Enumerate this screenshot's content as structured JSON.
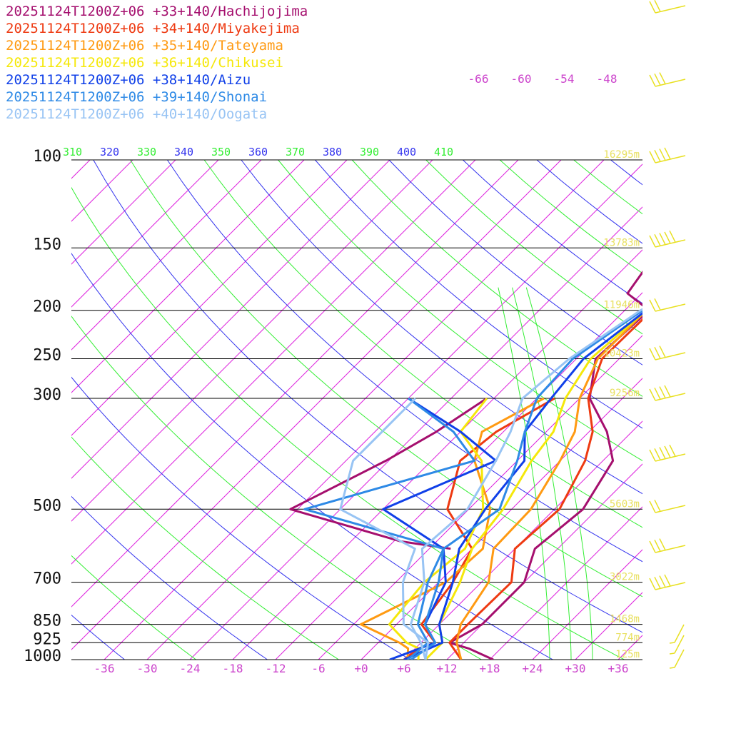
{
  "chart_data": {
    "type": "line",
    "title": "",
    "xlabel": "",
    "ylabel": "",
    "pressure_levels": [
      {
        "p": 100,
        "label": "100",
        "height": "16295m"
      },
      {
        "p": 150,
        "label": "150",
        "height": "13783m"
      },
      {
        "p": 200,
        "label": "200",
        "height": "11946m"
      },
      {
        "p": 250,
        "label": "250",
        "height": "10423m"
      },
      {
        "p": 300,
        "label": "300",
        "height": "9256m"
      },
      {
        "p": 500,
        "label": "500",
        "height": "5603m"
      },
      {
        "p": 700,
        "label": "700",
        "height": "3022m"
      },
      {
        "p": 850,
        "label": "850",
        "height": "1468m"
      },
      {
        "p": 925,
        "label": "925",
        "height": "774m"
      },
      {
        "p": 1000,
        "label": "1000",
        "height": "125m"
      }
    ],
    "x_ticks": [
      "-36",
      "-30",
      "-24",
      "-18",
      "-12",
      "-6",
      "+0",
      "+6",
      "+12",
      "+18",
      "+24",
      "+30",
      "+36"
    ],
    "x_tick_values": [
      -36,
      -30,
      -24,
      -18,
      -12,
      -6,
      0,
      6,
      12,
      18,
      24,
      30,
      36
    ],
    "upper_isotherm_labels": [
      "-66",
      "-60",
      "-54",
      "-48"
    ],
    "theta_labels": [
      "310",
      "320",
      "330",
      "340",
      "350",
      "360",
      "370",
      "380",
      "390",
      "400",
      "410"
    ],
    "xlim": [
      -40,
      40
    ],
    "ylim": [
      1000,
      100
    ],
    "series": [
      {
        "name": "20251124T1200Z+06 +33+140/Hachijojima",
        "color": "#a50f6e",
        "profile": [
          [
            1000,
            18.5
          ],
          [
            950,
            13.5
          ],
          [
            925,
            10
          ],
          [
            850,
            12
          ],
          [
            700,
            12
          ],
          [
            600,
            8.8
          ],
          [
            500,
            10
          ],
          [
            400,
            7.4
          ],
          [
            350,
            2.5
          ],
          [
            300,
            -4.6
          ],
          [
            250,
            -9.3
          ],
          [
            200,
            -8.6
          ],
          [
            185,
            -14
          ],
          [
            165,
            -15
          ],
          [
            150,
            -15
          ],
          [
            100,
            -5
          ],
          [
            80,
            12
          ],
          [
            70,
            17
          ],
          [
            62,
            26
          ],
          [
            52,
            40
          ],
          [
            45,
            52
          ]
        ],
        "dewpoint": [
          [
            600,
            -3
          ],
          [
            580,
            -11
          ],
          [
            500,
            -31
          ],
          [
            400,
            -24.4
          ],
          [
            350,
            -21.4
          ],
          [
            300,
            -19
          ]
        ]
      },
      {
        "name": "20251124T1200Z+06 +34+140/Miyakejima",
        "color": "#ee3a12",
        "profile": [
          [
            1000,
            14
          ],
          [
            925,
            10
          ],
          [
            850,
            10
          ],
          [
            700,
            10.2
          ],
          [
            600,
            6
          ],
          [
            500,
            6.7
          ],
          [
            400,
            3.5
          ],
          [
            350,
            0.5
          ],
          [
            300,
            -4.8
          ],
          [
            250,
            -8.4
          ],
          [
            200,
            -8.2
          ],
          [
            175,
            -11
          ],
          [
            150,
            -12
          ],
          [
            100,
            -2
          ],
          [
            70,
            14
          ],
          [
            55,
            34
          ],
          [
            46,
            52
          ]
        ],
        "dewpoint": [
          [
            1000,
            6
          ],
          [
            950,
            6.5
          ],
          [
            925,
            8
          ],
          [
            850,
            3.5
          ],
          [
            700,
            2
          ],
          [
            600,
            0
          ],
          [
            500,
            -9
          ],
          [
            400,
            -14
          ],
          [
            350,
            -13
          ],
          [
            300,
            -9.5
          ]
        ]
      },
      {
        "name": "20251124T1200Z+06 +35+140/Tateyama",
        "color": "#ff9a12",
        "profile": [
          [
            1000,
            14
          ],
          [
            925,
            11
          ],
          [
            850,
            9
          ],
          [
            700,
            7
          ],
          [
            600,
            3
          ],
          [
            500,
            2.7
          ],
          [
            400,
            0
          ],
          [
            350,
            -2
          ],
          [
            300,
            -6
          ],
          [
            250,
            -9
          ],
          [
            200,
            -9
          ],
          [
            175,
            -11
          ],
          [
            150,
            -10
          ],
          [
            100,
            2
          ],
          [
            70,
            8
          ],
          [
            55,
            33
          ],
          [
            46,
            50
          ]
        ],
        "dewpoint": [
          [
            1000,
            6.5
          ],
          [
            950,
            5
          ],
          [
            925,
            3
          ],
          [
            850,
            -5
          ],
          [
            700,
            1
          ],
          [
            600,
            1.5
          ],
          [
            500,
            -3
          ],
          [
            400,
            -12
          ],
          [
            350,
            -15
          ],
          [
            300,
            -11
          ]
        ]
      },
      {
        "name": "20251124T1200Z+06 +36+140/Chikusei",
        "color": "#f5e80a",
        "profile": [
          [
            1000,
            9
          ],
          [
            925,
            9
          ],
          [
            850,
            6
          ],
          [
            700,
            3
          ],
          [
            600,
            0
          ],
          [
            500,
            -1.2
          ],
          [
            400,
            -4
          ],
          [
            350,
            -5
          ],
          [
            300,
            -8
          ],
          [
            250,
            -10
          ],
          [
            200,
            -9
          ],
          [
            150,
            -7
          ],
          [
            100,
            3
          ],
          [
            70,
            13
          ],
          [
            55,
            35
          ],
          [
            46,
            52
          ]
        ],
        "dewpoint": [
          [
            1000,
            8
          ],
          [
            950,
            6.5
          ],
          [
            925,
            4
          ],
          [
            850,
            -1
          ],
          [
            700,
            -2
          ],
          [
            600,
            -1
          ],
          [
            500,
            -4
          ],
          [
            400,
            -11
          ],
          [
            350,
            -18
          ],
          [
            300,
            -19
          ]
        ]
      },
      {
        "name": "20251124T1200Z+06 +38+140/Aizu",
        "color": "#1040e8",
        "profile": [
          [
            1000,
            6
          ],
          [
            925,
            9
          ],
          [
            850,
            6
          ],
          [
            700,
            2
          ],
          [
            600,
            -1.8
          ],
          [
            500,
            -3.7
          ],
          [
            400,
            -5
          ],
          [
            350,
            -9
          ],
          [
            300,
            -10
          ],
          [
            250,
            -11
          ],
          [
            200,
            -9
          ],
          [
            150,
            -5
          ],
          [
            100,
            6
          ],
          [
            70,
            17
          ],
          [
            55,
            38
          ],
          [
            46,
            54
          ]
        ],
        "dewpoint": [
          [
            1000,
            4
          ],
          [
            925,
            8
          ],
          [
            850,
            4
          ],
          [
            700,
            1
          ],
          [
            600,
            -4
          ],
          [
            500,
            -18
          ],
          [
            400,
            -9
          ],
          [
            350,
            -18
          ],
          [
            300,
            -30
          ]
        ]
      },
      {
        "name": "20251124T1200Z+06 +39+140/Shonai",
        "color": "#2e8ae6",
        "profile": [
          [
            1000,
            7
          ],
          [
            925,
            8
          ],
          [
            850,
            4
          ],
          [
            700,
            0
          ],
          [
            600,
            -4
          ],
          [
            500,
            -1.7
          ],
          [
            400,
            -6
          ],
          [
            350,
            -9
          ],
          [
            300,
            -12
          ],
          [
            250,
            -12.5
          ],
          [
            200,
            -9.5
          ],
          [
            150,
            -4
          ],
          [
            100,
            8
          ],
          [
            70,
            17.5
          ],
          [
            55,
            39
          ],
          [
            46,
            55
          ]
        ],
        "dewpoint": [
          [
            1000,
            6.5
          ],
          [
            925,
            7
          ],
          [
            850,
            3
          ],
          [
            700,
            -1.5
          ],
          [
            600,
            -4
          ],
          [
            500,
            -29
          ],
          [
            400,
            -12
          ],
          [
            350,
            -19
          ],
          [
            300,
            -30
          ]
        ]
      },
      {
        "name": "20251124T1200Z+06 +40+140/Oogata",
        "color": "#98c4f4",
        "profile": [
          [
            1000,
            9
          ],
          [
            925,
            6
          ],
          [
            850,
            2
          ],
          [
            700,
            -2
          ],
          [
            600,
            -7
          ],
          [
            500,
            -6.2
          ],
          [
            400,
            -9
          ],
          [
            350,
            -11
          ],
          [
            300,
            -14
          ],
          [
            250,
            -13
          ],
          [
            200,
            -9.8
          ],
          [
            150,
            -2
          ],
          [
            100,
            13
          ],
          [
            75,
            20
          ],
          [
            62,
            38
          ],
          [
            52,
            55
          ]
        ],
        "dewpoint": [
          [
            1000,
            9
          ],
          [
            925,
            7
          ],
          [
            850,
            1
          ],
          [
            700,
            -5
          ],
          [
            600,
            -8
          ],
          [
            500,
            -24
          ],
          [
            400,
            -29
          ],
          [
            350,
            -29
          ],
          [
            300,
            -29
          ]
        ]
      }
    ],
    "grid": true,
    "legend_position": "top-left"
  }
}
